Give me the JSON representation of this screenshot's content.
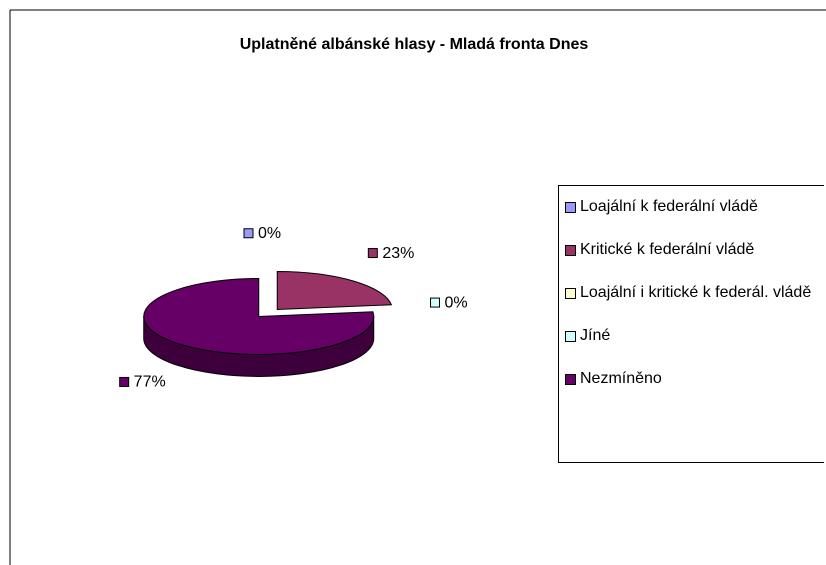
{
  "chart_data": {
    "type": "pie",
    "title": "Uplatněné albánské hlasy - Mladá fronta Dnes",
    "categories": [
      "Loajální k federální vládě",
      "Kritické k federální vládě",
      "Loajální i kritické k federál. vládě",
      "Jíné",
      "Nezmíněno"
    ],
    "values": [
      0,
      23,
      0,
      0,
      77
    ],
    "value_labels": [
      "0%",
      "23%",
      null,
      "0%",
      "77%"
    ],
    "colors": [
      "#9999ff",
      "#993366",
      "#ffffcc",
      "#ccffff",
      "#660066"
    ],
    "legend": "right"
  }
}
